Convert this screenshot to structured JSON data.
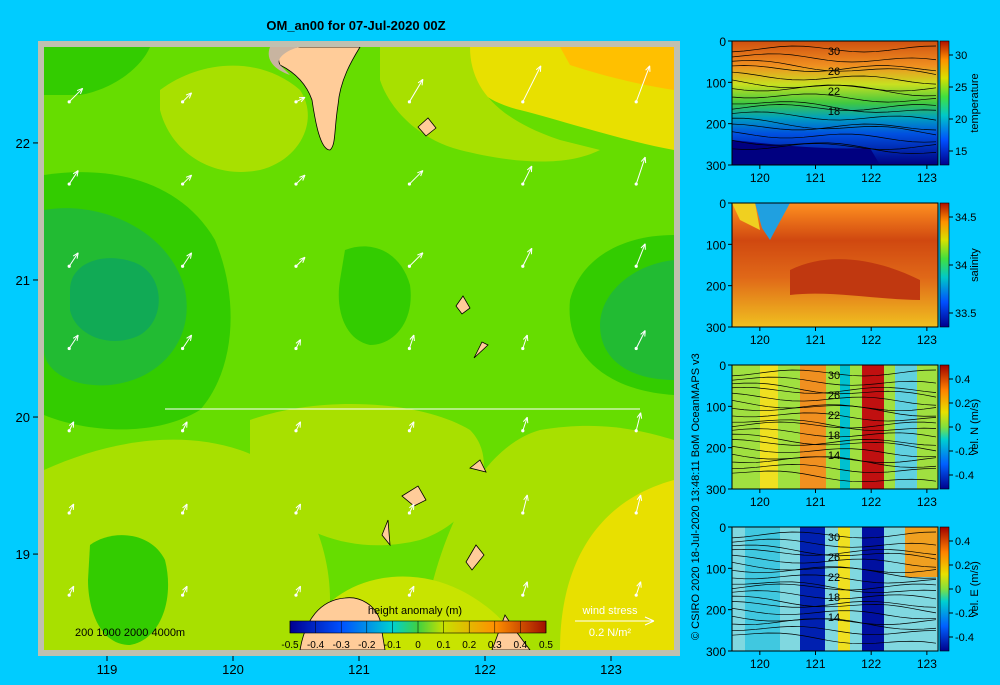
{
  "title": "OM_an00 for 07-Jul-2020 00Z",
  "colors": {
    "background": "#00ccff",
    "land": "#ffcc99",
    "shelf": "#c8b4a0",
    "frame": "#c0c0b0"
  },
  "map": {
    "x_ticks": [
      "119",
      "120",
      "121",
      "122",
      "123"
    ],
    "y_ticks": [
      "22",
      "21",
      "20",
      "19"
    ],
    "depth_legend": "200  1000  2000  4000m",
    "colorbar": {
      "title": "height anomaly (m)",
      "ticks": [
        "-0.5",
        "-0.4",
        "-0.3",
        "-0.2",
        "-0.1",
        "0",
        "0.1",
        "0.2",
        "0.3",
        "0.4",
        "0.5"
      ]
    },
    "wind_legend": {
      "label": "wind stress",
      "value_label": "0.2 N/m²"
    }
  },
  "credit": "© CSIRO 2020  18-Jul-2020 13:48:11 BoM OceanMAPS v3",
  "sections": [
    {
      "id": "temperature",
      "cbar_label": "temperature",
      "cbar_ticks": [
        "30",
        "25",
        "20",
        "15"
      ],
      "contour_labels": [
        "30",
        "26",
        "22",
        "18"
      ]
    },
    {
      "id": "salinity",
      "cbar_label": "salinity",
      "cbar_ticks": [
        "34.5",
        "34",
        "33.5"
      ],
      "contour_labels": []
    },
    {
      "id": "velN",
      "cbar_label": "vel. N (m/s)",
      "cbar_ticks": [
        "0.4",
        "0.2",
        "0",
        "-0.2",
        "-0.4"
      ],
      "contour_labels": [
        "30",
        "26",
        "22",
        "18",
        "14"
      ]
    },
    {
      "id": "velE",
      "cbar_label": "vel. E (m/s)",
      "cbar_ticks": [
        "0.4",
        "0.2",
        "0",
        "-0.2",
        "-0.4"
      ],
      "contour_labels": [
        "30",
        "26",
        "22",
        "18",
        "14"
      ]
    }
  ],
  "section_axes": {
    "x_ticks": [
      "120",
      "121",
      "122",
      "123"
    ],
    "y_ticks": [
      "0",
      "100",
      "200",
      "300"
    ]
  },
  "chart_data": {
    "type": "heatmap",
    "title": "OM_an00 for 07-Jul-2020 00Z",
    "variable": "height anomaly (m)",
    "xlim": [
      118.5,
      123.5
    ],
    "ylim": [
      18.3,
      22.7
    ],
    "color_range": [
      -0.5,
      0.5
    ],
    "grid": false,
    "section_latitude": 20,
    "section_lon_range": [
      119.5,
      123.2
    ],
    "wind_arrows": [
      [
        118.7,
        22.3,
        0.3,
        0.3
      ],
      [
        119.6,
        22.3,
        0.2,
        0.2
      ],
      [
        120.5,
        22.3,
        0.2,
        0.1
      ],
      [
        121.4,
        22.3,
        0.3,
        0.5
      ],
      [
        122.3,
        22.3,
        0.4,
        0.8
      ],
      [
        123.2,
        22.3,
        0.3,
        0.8
      ],
      [
        118.7,
        21.7,
        0.2,
        0.3
      ],
      [
        119.6,
        21.7,
        0.2,
        0.2
      ],
      [
        120.5,
        21.7,
        0.2,
        0.2
      ],
      [
        121.4,
        21.7,
        0.3,
        0.3
      ],
      [
        122.3,
        21.7,
        0.2,
        0.4
      ],
      [
        123.2,
        21.7,
        0.2,
        0.6
      ],
      [
        118.7,
        21.1,
        0.2,
        0.3
      ],
      [
        119.6,
        21.1,
        0.2,
        0.3
      ],
      [
        120.5,
        21.1,
        0.2,
        0.2
      ],
      [
        121.4,
        21.1,
        0.3,
        0.3
      ],
      [
        122.3,
        21.1,
        0.2,
        0.4
      ],
      [
        123.2,
        21.1,
        0.2,
        0.5
      ],
      [
        118.7,
        20.5,
        0.2,
        0.3
      ],
      [
        119.6,
        20.5,
        0.2,
        0.3
      ],
      [
        120.5,
        20.5,
        0.1,
        0.2
      ],
      [
        121.4,
        20.5,
        0.1,
        0.3
      ],
      [
        122.3,
        20.5,
        0.1,
        0.3
      ],
      [
        123.2,
        20.5,
        0.2,
        0.4
      ],
      [
        118.7,
        19.9,
        0.1,
        0.2
      ],
      [
        119.6,
        19.9,
        0.1,
        0.2
      ],
      [
        120.5,
        19.9,
        0.1,
        0.2
      ],
      [
        121.4,
        19.9,
        0.1,
        0.2
      ],
      [
        122.3,
        19.9,
        0.1,
        0.3
      ],
      [
        123.2,
        19.9,
        0.1,
        0.4
      ],
      [
        118.7,
        19.3,
        0.1,
        0.2
      ],
      [
        119.6,
        19.3,
        0.1,
        0.2
      ],
      [
        120.5,
        19.3,
        0.1,
        0.2
      ],
      [
        121.4,
        19.3,
        0.1,
        0.2
      ],
      [
        122.3,
        19.3,
        0.1,
        0.4
      ],
      [
        123.2,
        19.3,
        0.1,
        0.4
      ],
      [
        118.7,
        18.7,
        0.1,
        0.2
      ],
      [
        119.6,
        18.7,
        0.1,
        0.2
      ],
      [
        120.5,
        18.7,
        0.1,
        0.2
      ],
      [
        121.4,
        18.7,
        0.1,
        0.2
      ],
      [
        122.3,
        18.7,
        0.1,
        0.3
      ],
      [
        123.2,
        18.7,
        0.1,
        0.3
      ]
    ]
  }
}
